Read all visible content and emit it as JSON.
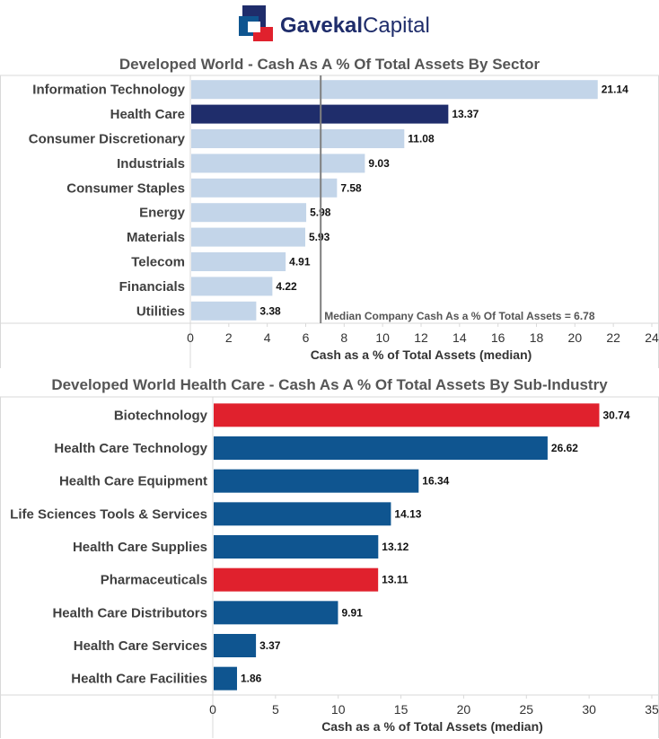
{
  "logo": {
    "text_bold": "Gavekal",
    "text_light": "Capital"
  },
  "chart_data": [
    {
      "type": "bar",
      "orientation": "horizontal",
      "title": "Developed World - Cash As A % Of Total Assets By Sector",
      "xlabel": "Cash as a % of Total Assets (median)",
      "xlim": [
        0,
        24
      ],
      "xticks": [
        0,
        2,
        4,
        6,
        8,
        10,
        12,
        14,
        16,
        18,
        20,
        22,
        24
      ],
      "categories": [
        "Information Technology",
        "Health Care",
        "Consumer Discretionary",
        "Industrials",
        "Consumer Staples",
        "Energy",
        "Materials",
        "Telecom",
        "Financials",
        "Utilities"
      ],
      "values": [
        21.14,
        13.37,
        11.08,
        9.03,
        7.58,
        5.98,
        5.93,
        4.91,
        4.22,
        3.38
      ],
      "value_labels": [
        "21.14",
        "13.37",
        "11.08",
        "9.03",
        "7.58",
        "5.98",
        "5.93",
        "4.91",
        "4.22",
        "3.38"
      ],
      "highlight": [
        "Health Care"
      ],
      "bar_color": "#c3d5e9",
      "highlight_color": "#1f2d6b",
      "reference_line": {
        "value": 6.78,
        "label": "Median Company Cash As a % Of Total Assets = 6.78",
        "color": "#7f7f7f"
      },
      "grid": false
    },
    {
      "type": "bar",
      "orientation": "horizontal",
      "title": "Developed World Health Care - Cash As A % Of Total Assets By Sub-Industry",
      "xlabel": "Cash as a % of Total Assets (median)",
      "xlim": [
        0,
        35
      ],
      "xticks": [
        0,
        5,
        10,
        15,
        20,
        25,
        30,
        35
      ],
      "categories": [
        "Biotechnology",
        "Health Care Technology",
        "Health Care Equipment",
        "Life Sciences Tools & Services",
        "Health Care Supplies",
        "Pharmaceuticals",
        "Health Care Distributors",
        "Health Care Services",
        "Health Care Facilities"
      ],
      "values": [
        30.74,
        26.62,
        16.34,
        14.13,
        13.12,
        13.11,
        9.91,
        3.37,
        1.86
      ],
      "value_labels": [
        "30.74",
        "26.62",
        "16.34",
        "14.13",
        "13.12",
        "13.11",
        "9.91",
        "3.37",
        "1.86"
      ],
      "highlight": [
        "Biotechnology",
        "Pharmaceuticals"
      ],
      "bar_color": "#0f5590",
      "highlight_color": "#e0212d",
      "grid": false
    }
  ]
}
